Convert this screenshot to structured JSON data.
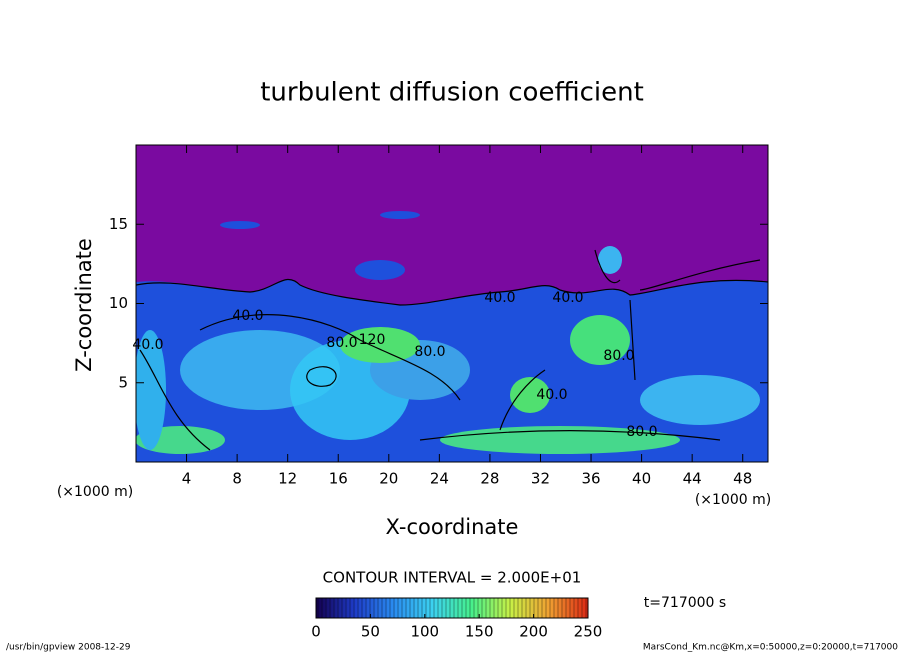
{
  "chart_data": {
    "type": "heatmap",
    "title": "turbulent diffusion coefficient",
    "x_label": "X-coordinate",
    "y_label": "Z-coordinate",
    "x_unit_label": "(×1000 m)",
    "xlim": [
      0,
      50
    ],
    "xticks": [
      4,
      8,
      12,
      16,
      20,
      24,
      28,
      32,
      36,
      40,
      44,
      48
    ],
    "ylim": [
      0,
      20
    ],
    "yticks": [
      5,
      10,
      15
    ],
    "contour_labels": [
      "40.0",
      "40.0",
      "40.0",
      "80.0",
      "120",
      "80.0",
      "40.0",
      "80.0",
      "80.0",
      "40.0"
    ],
    "contour_interval": "CONTOUR INTERVAL = 2.000E+01",
    "time_label": "t=717000 s",
    "colorbar": {
      "lim": [
        0,
        250
      ],
      "ticks": [
        0,
        50,
        100,
        150,
        200,
        250
      ],
      "colors": [
        "#140050",
        "#1e3cc8",
        "#2a8cf0",
        "#3cd2f0",
        "#46f08c",
        "#c8f046",
        "#f0a032",
        "#dc2814"
      ]
    },
    "footer_left": "/usr/bin/gpview  2008-12-29",
    "footer_right": "MarsCond_Km.nc@Km,x=0:50000,z=0:20000,t=717000"
  }
}
